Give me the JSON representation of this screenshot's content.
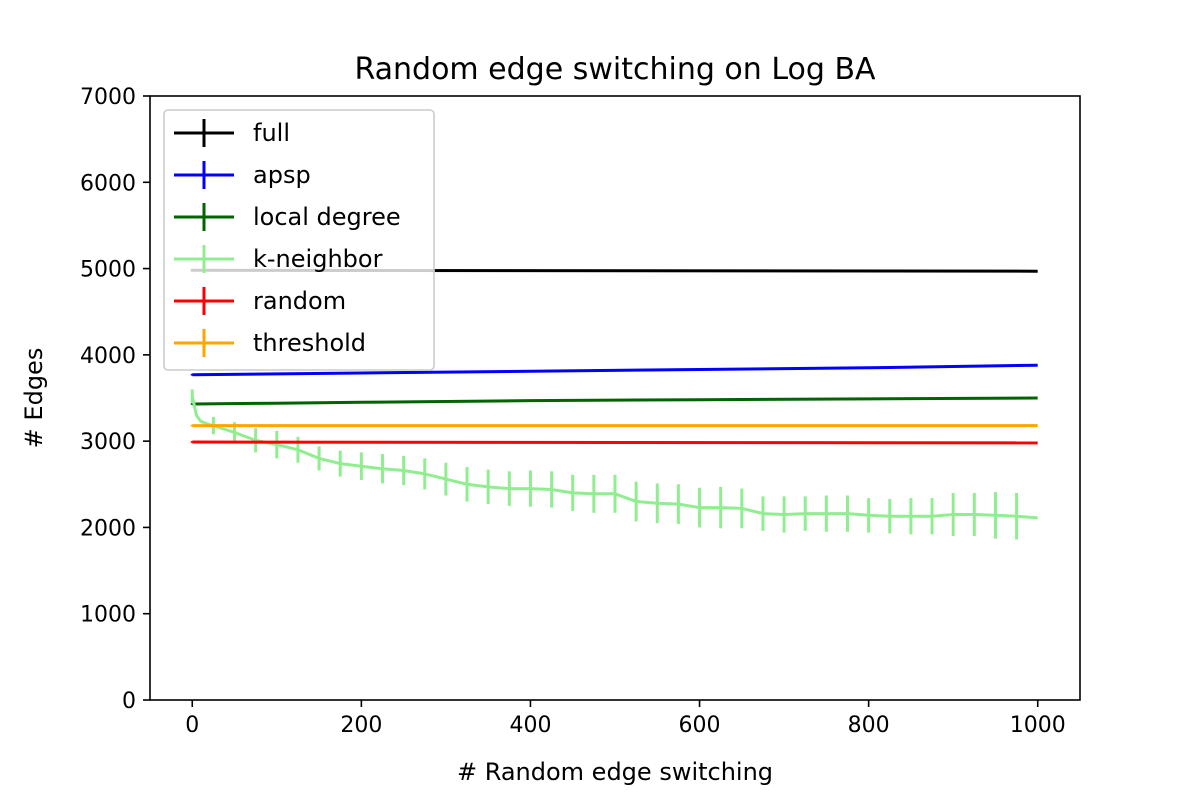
{
  "chart_data": {
    "type": "line",
    "title": "Random edge switching on Log BA",
    "xlabel": "# Random edge switching",
    "ylabel": "# Edges",
    "xlim": [
      -50,
      1050
    ],
    "ylim": [
      0,
      7000
    ],
    "xticks": [
      0,
      200,
      400,
      600,
      800,
      1000
    ],
    "yticks": [
      0,
      1000,
      2000,
      3000,
      4000,
      5000,
      6000,
      7000
    ],
    "grid": false,
    "legend_position": "top-left",
    "error_bar_every": 25,
    "series": [
      {
        "name": "full",
        "color": "#000000",
        "points": [
          [
            0,
            4980
          ],
          [
            1000,
            4970
          ]
        ],
        "errors": [
          [
            0,
            15
          ]
        ]
      },
      {
        "name": "apsp",
        "color": "#0000ff",
        "points": [
          [
            0,
            3770
          ],
          [
            200,
            3790
          ],
          [
            400,
            3810
          ],
          [
            600,
            3830
          ],
          [
            800,
            3850
          ],
          [
            1000,
            3880
          ]
        ],
        "errors": [
          [
            0,
            10
          ]
        ]
      },
      {
        "name": "local degree",
        "color": "#006400",
        "points": [
          [
            0,
            3430
          ],
          [
            100,
            3440
          ],
          [
            200,
            3450
          ],
          [
            400,
            3470
          ],
          [
            600,
            3480
          ],
          [
            800,
            3490
          ],
          [
            1000,
            3500
          ]
        ],
        "errors": [
          [
            0,
            10
          ]
        ]
      },
      {
        "name": "k-neighbor",
        "color": "#90ee90",
        "points": [
          [
            0,
            3520
          ],
          [
            5,
            3300
          ],
          [
            10,
            3230
          ],
          [
            20,
            3190
          ],
          [
            25,
            3180
          ],
          [
            50,
            3100
          ],
          [
            75,
            3010
          ],
          [
            100,
            2960
          ],
          [
            125,
            2900
          ],
          [
            150,
            2800
          ],
          [
            175,
            2740
          ],
          [
            200,
            2710
          ],
          [
            225,
            2680
          ],
          [
            250,
            2660
          ],
          [
            275,
            2620
          ],
          [
            300,
            2560
          ],
          [
            325,
            2500
          ],
          [
            350,
            2470
          ],
          [
            375,
            2450
          ],
          [
            400,
            2450
          ],
          [
            425,
            2440
          ],
          [
            450,
            2400
          ],
          [
            475,
            2390
          ],
          [
            500,
            2390
          ],
          [
            525,
            2300
          ],
          [
            550,
            2280
          ],
          [
            575,
            2270
          ],
          [
            600,
            2230
          ],
          [
            625,
            2230
          ],
          [
            650,
            2220
          ],
          [
            675,
            2160
          ],
          [
            700,
            2150
          ],
          [
            725,
            2160
          ],
          [
            750,
            2160
          ],
          [
            775,
            2160
          ],
          [
            800,
            2140
          ],
          [
            825,
            2130
          ],
          [
            850,
            2130
          ],
          [
            875,
            2130
          ],
          [
            900,
            2150
          ],
          [
            925,
            2150
          ],
          [
            950,
            2140
          ],
          [
            975,
            2130
          ],
          [
            1000,
            2110
          ]
        ],
        "errors": [
          [
            0,
            80
          ],
          [
            25,
            100
          ],
          [
            50,
            120
          ],
          [
            75,
            140
          ],
          [
            100,
            160
          ],
          [
            125,
            150
          ],
          [
            150,
            140
          ],
          [
            175,
            150
          ],
          [
            200,
            160
          ],
          [
            225,
            170
          ],
          [
            250,
            170
          ],
          [
            275,
            180
          ],
          [
            300,
            190
          ],
          [
            325,
            200
          ],
          [
            350,
            200
          ],
          [
            375,
            200
          ],
          [
            400,
            210
          ],
          [
            425,
            210
          ],
          [
            450,
            210
          ],
          [
            475,
            220
          ],
          [
            500,
            220
          ],
          [
            525,
            230
          ],
          [
            550,
            230
          ],
          [
            575,
            230
          ],
          [
            600,
            230
          ],
          [
            625,
            240
          ],
          [
            650,
            230
          ],
          [
            675,
            200
          ],
          [
            700,
            210
          ],
          [
            725,
            200
          ],
          [
            750,
            210
          ],
          [
            775,
            210
          ],
          [
            800,
            200
          ],
          [
            825,
            200
          ],
          [
            850,
            210
          ],
          [
            875,
            210
          ],
          [
            900,
            250
          ],
          [
            925,
            250
          ],
          [
            950,
            270
          ],
          [
            975,
            270
          ]
        ]
      },
      {
        "name": "random",
        "color": "#ff0000",
        "points": [
          [
            0,
            2990
          ],
          [
            1000,
            2980
          ]
        ],
        "errors": [
          [
            0,
            10
          ]
        ]
      },
      {
        "name": "threshold",
        "color": "#ffa500",
        "points": [
          [
            0,
            3180
          ],
          [
            500,
            3180
          ],
          [
            1000,
            3180
          ]
        ],
        "errors": [
          [
            0,
            10
          ]
        ]
      }
    ]
  }
}
